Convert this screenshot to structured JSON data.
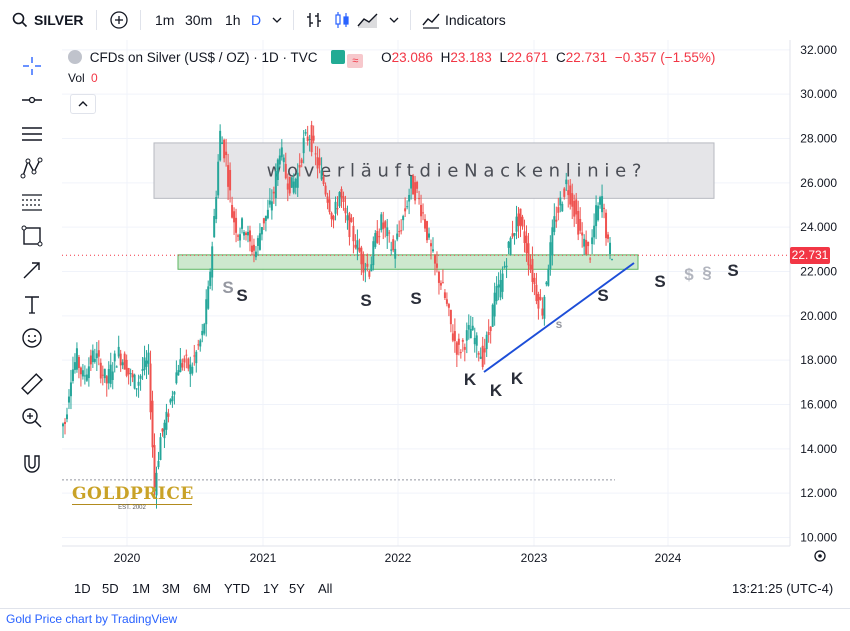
{
  "toolbar": {
    "symbol": "SILVER",
    "intervals": [
      "1m",
      "30m",
      "1h",
      "D"
    ],
    "active_interval": "D",
    "indicators_label": "Indicators"
  },
  "legend": {
    "title": "CFDs on Silver (US$ / OZ) · 1D · TVC",
    "open_label": "O",
    "open": "23.086",
    "high_label": "H",
    "high": "23.183",
    "low_label": "L",
    "low": "22.671",
    "close_label": "C",
    "close": "22.731",
    "change": "−0.357 (−1.55%)",
    "vol_label": "Vol",
    "vol_value": "0"
  },
  "last_price": "22.731",
  "annotation_text": "w o  v e r l ä u f t  d i e  N a c k e n l i n i e ?",
  "markers": {
    "s": "S",
    "k": "K",
    "s_small": "s",
    "dollar_s": "$",
    "para": "§"
  },
  "watermark": {
    "name": "GOLDPRICE",
    "est": "EST. 2002"
  },
  "ranges": [
    "1D",
    "5D",
    "1M",
    "3M",
    "6M",
    "YTD",
    "1Y",
    "5Y",
    "All"
  ],
  "clock": "13:21:25 (UTC-4)",
  "footer": "Gold Price chart by TradingView",
  "colors": {
    "up": "#26a69a",
    "down": "#ef5350",
    "trendline": "#1d4ed8",
    "zone": "#c8e6c9",
    "box": "#e5e5e8",
    "accent": "#2962ff"
  },
  "chart_data": {
    "type": "candlestick",
    "y_ticks": [
      "32.000",
      "30.000",
      "28.000",
      "26.000",
      "24.000",
      "22.000",
      "20.000",
      "18.000",
      "16.000",
      "14.000",
      "12.000",
      "10.000"
    ],
    "x_ticks": [
      "2020",
      "2021",
      "2022",
      "2023",
      "2024"
    ],
    "ylim": [
      10,
      32
    ],
    "series": [
      {
        "values": [
          15.2,
          17.4,
          18.1,
          17.2,
          17.8,
          18.3,
          17.6,
          17.0,
          17.8,
          18.3,
          17.9,
          17.2,
          16.9,
          17.6,
          17.9,
          12.3,
          14.5,
          15.3,
          16.6,
          17.8,
          17.9,
          17.6,
          18.3,
          19.1,
          21.0,
          24.4,
          28.2,
          27.1,
          24.6,
          23.8,
          24.1,
          23.2,
          22.9,
          24.2,
          24.6,
          25.6,
          27.6,
          26.3,
          25.8,
          26.4,
          27.8,
          28.2,
          27.1,
          26.3,
          25.4,
          24.3,
          25.6,
          24.4,
          23.8,
          23.1,
          22.4,
          22.1,
          23.4,
          24.2,
          23.6,
          22.9,
          23.8,
          24.8,
          25.9,
          25.5,
          24.6,
          23.3,
          22.2,
          21.5,
          20.4,
          19.1,
          18.4,
          18.9,
          19.4,
          18.7,
          18.1,
          19.2,
          20.8,
          21.4,
          22.7,
          23.8,
          24.4,
          23.5,
          22.2,
          21.0,
          20.3,
          22.4,
          24.2,
          25.1,
          26.0,
          25.2,
          24.1,
          23.2,
          22.8,
          24.6,
          25.3,
          23.1,
          22.7
        ]
      }
    ],
    "annotations": {
      "box_top": 27.8,
      "box_bottom": 25.3,
      "zone_top": 22.75,
      "zone_bottom": 22.1,
      "dotted_support": 12.6
    }
  }
}
